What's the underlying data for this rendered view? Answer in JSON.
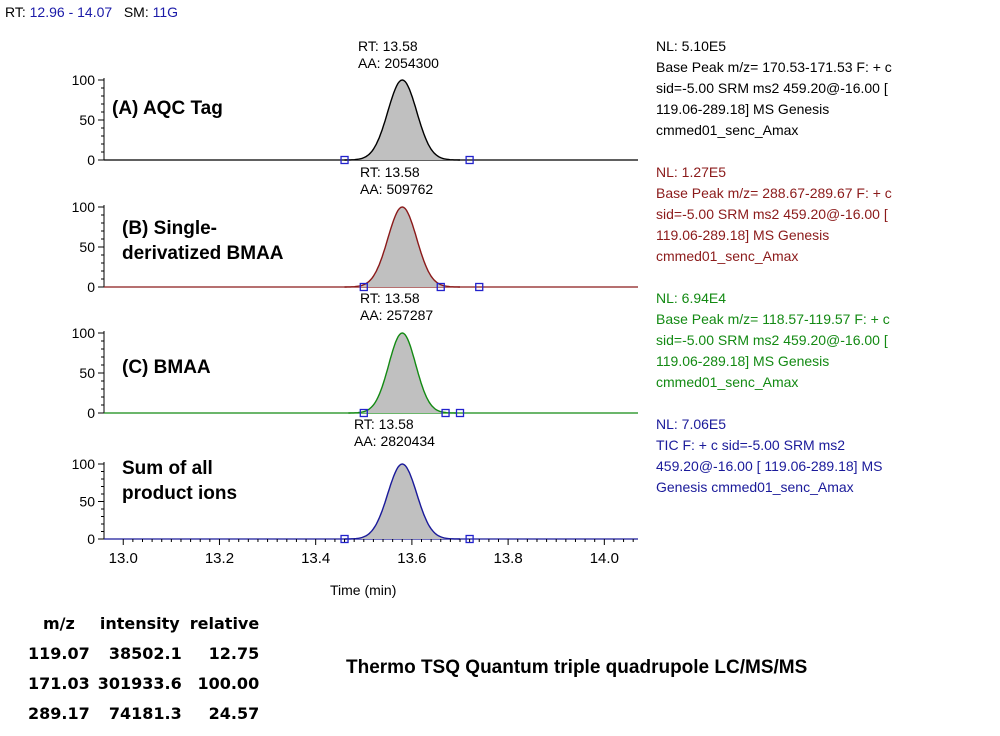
{
  "header": {
    "rt_label": "RT:",
    "rt_range": "12.96 - 14.07",
    "sm_label": "SM:",
    "sm_value": "11G"
  },
  "chart_data": {
    "type": "line",
    "xlabel": "Time (min)",
    "xlim": [
      12.96,
      14.07
    ],
    "xticks": [
      "13.0",
      "13.2",
      "13.4",
      "13.6",
      "13.8",
      "14.0"
    ],
    "ylim": [
      0,
      100
    ],
    "yticks": [
      "0",
      "50",
      "100"
    ],
    "panels": [
      {
        "title": "(A) AQC Tag",
        "color": "#000000",
        "peak": {
          "rt_text": "RT: 13.58",
          "aa_text": "AA: 2054300",
          "rt": 13.58,
          "height": 100,
          "sigma": 0.03
        },
        "integration_markers": [
          13.46,
          13.72
        ],
        "nl": "NL: 5.10E5",
        "filter": [
          "Base Peak m/z= 170.53-171.53 F: + c",
          "sid=-5.00  SRM ms2 459.20@-16.00 [",
          "119.06-289.18]  MS  Genesis",
          "cmmed01_senc_Amax"
        ]
      },
      {
        "title": "(B) Single-derivatized BMAA",
        "title_lines": [
          "(B) Single-",
          "derivatized BMAA"
        ],
        "color": "#8b1a1a",
        "peak": {
          "rt_text": "RT: 13.58",
          "aa_text": "AA: 509762",
          "rt": 13.58,
          "height": 100,
          "sigma": 0.03
        },
        "integration_markers": [
          13.5,
          13.66,
          13.74
        ],
        "nl": "NL: 1.27E5",
        "filter": [
          "Base Peak m/z= 288.67-289.67 F: + c",
          "sid=-5.00  SRM ms2 459.20@-16.00 [",
          "119.06-289.18]  MS  Genesis",
          "cmmed01_senc_Amax"
        ]
      },
      {
        "title": "(C) BMAA",
        "color": "#138a13",
        "peak": {
          "rt_text": "RT: 13.58",
          "aa_text": "AA: 257287",
          "rt": 13.58,
          "height": 100,
          "sigma": 0.028
        },
        "integration_markers": [
          13.5,
          13.67,
          13.7
        ],
        "nl": "NL: 6.94E4",
        "filter": [
          "Base Peak m/z= 118.57-119.57 F: + c",
          "sid=-5.00  SRM ms2 459.20@-16.00 [",
          "119.06-289.18]  MS  Genesis",
          "cmmed01_senc_Amax"
        ]
      },
      {
        "title": "Sum of all product ions",
        "title_lines": [
          "Sum of all",
          "product ions"
        ],
        "color": "#1a1a9a",
        "peak": {
          "rt_text": "RT: 13.58",
          "aa_text": "AA: 2820434",
          "rt": 13.58,
          "height": 100,
          "sigma": 0.03
        },
        "integration_markers": [
          13.46,
          13.72
        ],
        "nl": "NL: 7.06E5",
        "filter": [
          "TIC F: + c sid=-5.00  SRM ms2",
          "459.20@-16.00 [ 119.06-289.18]  MS",
          "Genesis cmmed01_senc_Amax"
        ]
      }
    ]
  },
  "mz_table": {
    "headers": [
      "m/z",
      "intensity",
      "relative"
    ],
    "rows": [
      [
        "119.07",
        "38502.1",
        "12.75"
      ],
      [
        "171.03",
        "301933.6",
        "100.00"
      ],
      [
        "289.17",
        "74181.3",
        "24.57"
      ]
    ]
  },
  "instrument": "Thermo TSQ Quantum triple quadrupole LC/MS/MS"
}
